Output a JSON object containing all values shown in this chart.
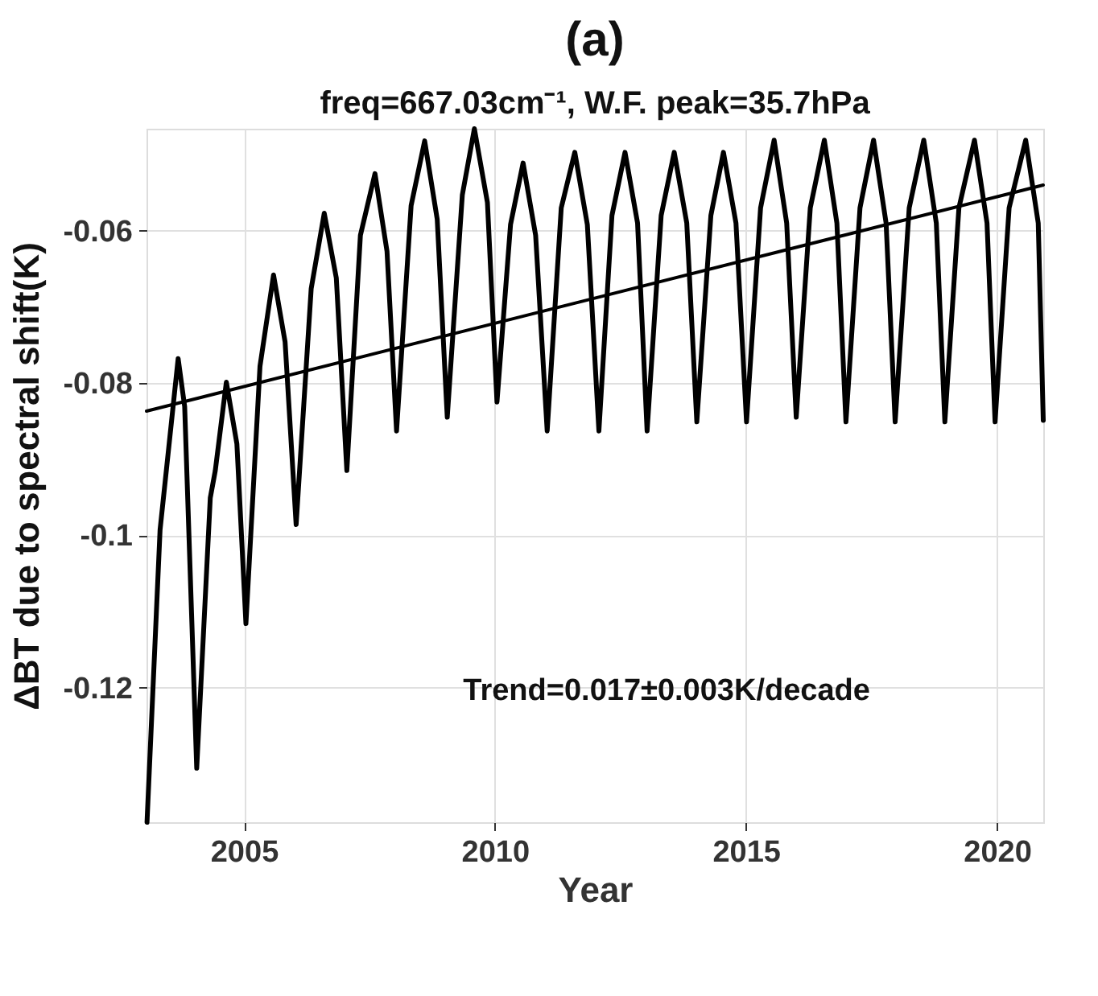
{
  "chart_data": {
    "type": "line",
    "title": "(a)",
    "subtitle": "freq=667.03cm⁻¹, W.F. peak=35.7hPa",
    "xlabel": "Year",
    "ylabel": "ΔBT due to spectral shift(K)",
    "xlim": [
      2003.06,
      2020.92
    ],
    "ylim": [
      -0.1377,
      -0.0466
    ],
    "xticks": [
      2005,
      2010,
      2015,
      2020
    ],
    "yticks": [
      -0.12,
      -0.1,
      -0.08,
      -0.06
    ],
    "grid": true,
    "marker": "none",
    "line_style": "solid",
    "annotations": [
      "Trend=0.017±0.003K/decade"
    ],
    "series": [
      {
        "color": "#000000",
        "x": [
          2003.07,
          2003.33,
          2003.69,
          2003.82,
          2004.06,
          2004.33,
          2004.43,
          2004.65,
          2004.86,
          2005.04,
          2005.32,
          2005.59,
          2005.82,
          2006.04,
          2006.34,
          2006.6,
          2006.84,
          2007.05,
          2007.32,
          2007.61,
          2007.85,
          2008.04,
          2008.33,
          2008.6,
          2008.85,
          2009.05,
          2009.35,
          2009.59,
          2009.85,
          2010.04,
          2010.31,
          2010.56,
          2010.81,
          2011.04,
          2011.32,
          2011.59,
          2011.84,
          2012.07,
          2012.33,
          2012.59,
          2012.84,
          2013.03,
          2013.31,
          2013.57,
          2013.82,
          2014.02,
          2014.3,
          2014.55,
          2014.8,
          2015.01,
          2015.29,
          2015.56,
          2015.81,
          2016.0,
          2016.28,
          2016.56,
          2016.81,
          2016.99,
          2017.27,
          2017.54,
          2017.79,
          2017.97,
          2018.25,
          2018.54,
          2018.79,
          2018.96,
          2019.24,
          2019.55,
          2019.8,
          2019.96,
          2020.24,
          2020.57,
          2020.82,
          2020.92
        ],
        "values": [
          -0.1377,
          -0.0993,
          -0.0768,
          -0.0831,
          -0.1306,
          -0.0951,
          -0.0915,
          -0.0799,
          -0.088,
          -0.1116,
          -0.0778,
          -0.0658,
          -0.0746,
          -0.0986,
          -0.0676,
          -0.0577,
          -0.0662,
          -0.0915,
          -0.0606,
          -0.0525,
          -0.0627,
          -0.0863,
          -0.0567,
          -0.0482,
          -0.0585,
          -0.0845,
          -0.0553,
          -0.0466,
          -0.0563,
          -0.0825,
          -0.0592,
          -0.0511,
          -0.0606,
          -0.0863,
          -0.057,
          -0.0497,
          -0.0592,
          -0.0863,
          -0.058,
          -0.0497,
          -0.059,
          -0.0863,
          -0.058,
          -0.0497,
          -0.059,
          -0.0851,
          -0.058,
          -0.0497,
          -0.059,
          -0.0851,
          -0.057,
          -0.0481,
          -0.059,
          -0.0845,
          -0.057,
          -0.0481,
          -0.059,
          -0.0851,
          -0.057,
          -0.0481,
          -0.059,
          -0.0851,
          -0.057,
          -0.0481,
          -0.059,
          -0.0851,
          -0.057,
          -0.0481,
          -0.059,
          -0.0851,
          -0.057,
          -0.0481,
          -0.059,
          -0.0849
        ]
      },
      {
        "type": "line",
        "color": "#000000",
        "x": [
          2003.06,
          2020.92
        ],
        "values": [
          -0.0837,
          -0.054
        ]
      }
    ]
  }
}
